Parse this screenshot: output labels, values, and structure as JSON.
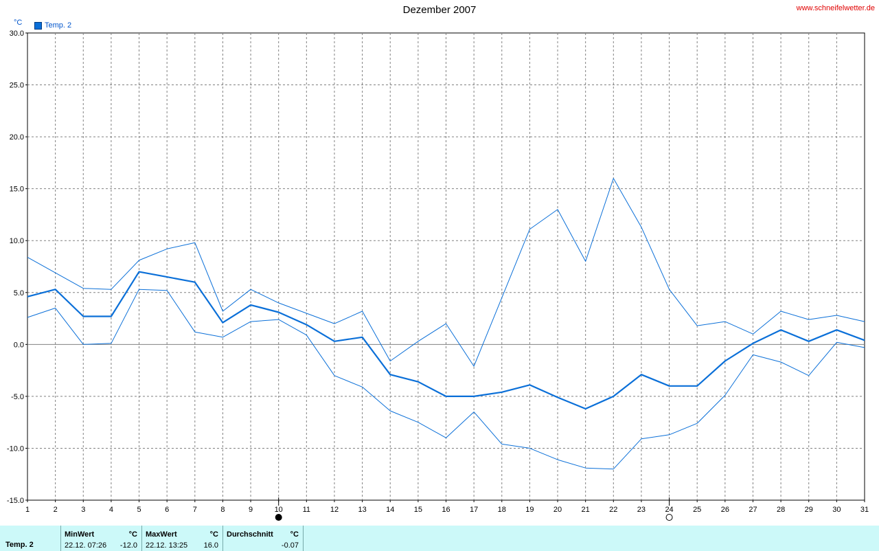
{
  "chart_data": {
    "type": "line",
    "title": "Dezember 2007",
    "ylabel": "°C",
    "ylim": [
      -15,
      30
    ],
    "xlim": [
      1,
      31
    ],
    "x": [
      1,
      2,
      3,
      4,
      5,
      6,
      7,
      8,
      9,
      10,
      11,
      12,
      13,
      14,
      15,
      16,
      17,
      18,
      19,
      20,
      21,
      22,
      23,
      24,
      25,
      26,
      27,
      28,
      29,
      30,
      31
    ],
    "y_ticks": [
      "30.0",
      "25.0",
      "20.0",
      "15.0",
      "10.0",
      "5.0",
      "0.0",
      "-5.0",
      "-10.0",
      "-15.0"
    ],
    "x_ticks": [
      "1",
      "2",
      "3",
      "4",
      "5",
      "6",
      "7",
      "8",
      "9",
      "10",
      "11",
      "12",
      "13",
      "14",
      "15",
      "16",
      "17",
      "18",
      "19",
      "20",
      "21",
      "22",
      "23",
      "24",
      "25",
      "26",
      "27",
      "28",
      "29",
      "30",
      "31"
    ],
    "grid": true,
    "legend": "top-left",
    "series": [
      {
        "name": "Temp. 2",
        "role": "mean",
        "color": "#0a6fd8",
        "values": [
          4.6,
          5.3,
          2.7,
          2.7,
          7.0,
          6.5,
          6.0,
          2.1,
          3.8,
          3.1,
          1.9,
          0.3,
          0.7,
          -2.9,
          -3.6,
          -5.0,
          -5.0,
          -4.6,
          -3.9,
          -5.1,
          -6.2,
          -5.0,
          -2.9,
          -4.0,
          -4.0,
          -1.6,
          0.1,
          1.4,
          0.3,
          1.4,
          0.4
        ]
      },
      {
        "role": "max",
        "color": "#0a6fd8",
        "values": [
          8.4,
          6.9,
          5.4,
          5.3,
          8.1,
          9.2,
          9.8,
          3.2,
          5.3,
          4.0,
          3.0,
          2.0,
          3.2,
          -1.6,
          0.3,
          2.0,
          -2.1,
          4.5,
          11.1,
          13.0,
          8.0,
          16.0,
          11.3,
          5.3,
          1.8,
          2.2,
          1.0,
          3.2,
          2.4,
          2.8,
          2.2
        ]
      },
      {
        "role": "min",
        "color": "#0a6fd8",
        "values": [
          2.6,
          3.5,
          0.0,
          0.1,
          5.3,
          5.2,
          1.2,
          0.7,
          2.2,
          2.4,
          0.9,
          -3.0,
          -4.1,
          -6.4,
          -7.5,
          -9.0,
          -6.5,
          -9.6,
          -10.0,
          -11.1,
          -11.9,
          -12.0,
          -9.1,
          -8.7,
          -7.6,
          -4.9,
          -1.0,
          -1.7,
          -3.0,
          0.2,
          -0.3
        ]
      }
    ],
    "moon_phases": [
      {
        "day": 10,
        "phase": "new-moon-icon"
      },
      {
        "day": 24,
        "phase": "full-moon-icon"
      }
    ]
  },
  "header": {
    "title": "Dezember 2007",
    "site": "www.schneifelwetter.de",
    "unit": "°C",
    "legend_label": "Temp. 2"
  },
  "stats": {
    "row_label": "Temp. 2",
    "min_header": "MinWert",
    "min_unit": "°C",
    "min_time": "22.12.  07:26",
    "min_value": "-12.0",
    "max_header": "MaxWert",
    "max_unit": "°C",
    "max_time": "22.12.  13:25",
    "max_value": "16.0",
    "avg_header": "Durchschnitt",
    "avg_unit": "°C",
    "avg_value": "-0.07"
  },
  "colors": {
    "line": "#0a6fd8",
    "grid": "#808080",
    "stats_bg": "#ccf9f9",
    "site": "#e00000"
  }
}
